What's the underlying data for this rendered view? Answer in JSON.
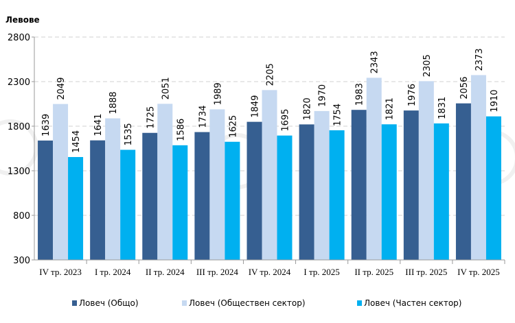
{
  "chart_data": {
    "type": "bar",
    "title": "",
    "ylabel": "Левове",
    "xlabel": "",
    "ylim": [
      300,
      2800
    ],
    "yticks": [
      300,
      800,
      1300,
      1800,
      2300,
      2800
    ],
    "grid": true,
    "legend_placement": "bottom",
    "categories": [
      "IV тр. 2023",
      "I тр. 2024",
      "II тр. 2024",
      "III тр. 2024",
      "IV тр. 2024",
      "I тр. 2025",
      "II тр. 2025",
      "III тр. 2025",
      "IV тр. 2025"
    ],
    "series": [
      {
        "name": "Ловеч (Общо)",
        "color": "#365f91",
        "values": [
          1639,
          1641,
          1725,
          1734,
          1849,
          1820,
          1983,
          1976,
          2056
        ]
      },
      {
        "name": "Ловеч (Обществен сектор)",
        "color": "#c6d9f1",
        "values": [
          2049,
          1888,
          2051,
          1989,
          2205,
          1970,
          2343,
          2305,
          2373
        ]
      },
      {
        "name": "Ловеч (Частен сектор)",
        "color": "#00b0f0",
        "values": [
          1454,
          1535,
          1586,
          1625,
          1695,
          1754,
          1821,
          1831,
          1910
        ]
      }
    ],
    "watermark": "БТА"
  }
}
